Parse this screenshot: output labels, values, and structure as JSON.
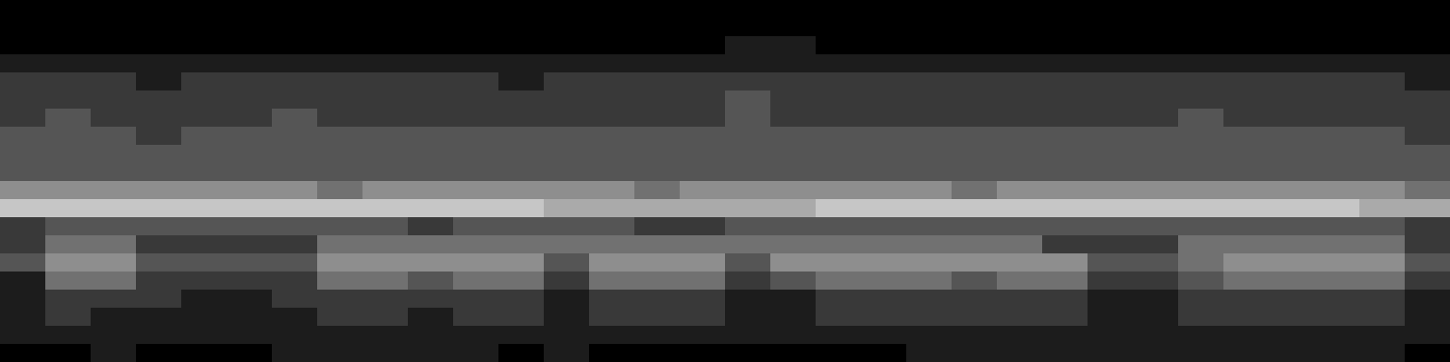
{
  "chart_data": {
    "type": "heatmap",
    "tick_labels": false,
    "color_range": [
      0,
      9
    ],
    "cells": [
      [
        0,
        0,
        0,
        0,
        0,
        0,
        0,
        0,
        0,
        0,
        0,
        0,
        0,
        0,
        0,
        0,
        0,
        0,
        0,
        0,
        0,
        0,
        0,
        0,
        0,
        0,
        0,
        0,
        0,
        0,
        0,
        0
      ],
      [
        0,
        0,
        0,
        0,
        0,
        0,
        0,
        0,
        0,
        0,
        0,
        0,
        0,
        0,
        0,
        0,
        0,
        0,
        0,
        0,
        0,
        0,
        0,
        0,
        0,
        0,
        0,
        0,
        0,
        0,
        0,
        0
      ],
      [
        0,
        0,
        0,
        0,
        0,
        0,
        0,
        0,
        0,
        0,
        0,
        0,
        0,
        0,
        0,
        0,
        1,
        1,
        0,
        0,
        0,
        0,
        0,
        0,
        0,
        0,
        0,
        0,
        0,
        0,
        0,
        0
      ],
      [
        1,
        1,
        1,
        1,
        1,
        1,
        1,
        1,
        1,
        1,
        1,
        1,
        1,
        1,
        1,
        1,
        1,
        1,
        1,
        1,
        1,
        1,
        1,
        1,
        1,
        1,
        1,
        1,
        1,
        1,
        1,
        1
      ],
      [
        2,
        2,
        2,
        1,
        2,
        2,
        2,
        2,
        2,
        2,
        2,
        1,
        2,
        2,
        2,
        2,
        2,
        2,
        2,
        2,
        2,
        2,
        2,
        2,
        2,
        2,
        2,
        2,
        2,
        2,
        2,
        1
      ],
      [
        2,
        2,
        2,
        2,
        2,
        2,
        2,
        2,
        2,
        2,
        2,
        2,
        2,
        2,
        2,
        2,
        3,
        2,
        2,
        2,
        2,
        2,
        2,
        2,
        2,
        2,
        2,
        2,
        2,
        2,
        2,
        2
      ],
      [
        2,
        3,
        2,
        2,
        2,
        2,
        3,
        2,
        2,
        2,
        2,
        2,
        2,
        2,
        2,
        2,
        3,
        2,
        2,
        2,
        2,
        2,
        2,
        2,
        2,
        2,
        3,
        2,
        2,
        2,
        2,
        2
      ],
      [
        3,
        3,
        3,
        2,
        3,
        3,
        3,
        3,
        3,
        3,
        3,
        3,
        3,
        3,
        3,
        3,
        3,
        3,
        3,
        3,
        3,
        3,
        3,
        3,
        3,
        3,
        3,
        3,
        3,
        3,
        3,
        2
      ],
      [
        3,
        3,
        3,
        3,
        3,
        3,
        3,
        3,
        3,
        3,
        3,
        3,
        3,
        3,
        3,
        3,
        3,
        3,
        3,
        3,
        3,
        3,
        3,
        3,
        3,
        3,
        3,
        3,
        3,
        3,
        3,
        3
      ],
      [
        3,
        3,
        3,
        3,
        3,
        3,
        3,
        3,
        3,
        3,
        3,
        3,
        3,
        3,
        3,
        3,
        3,
        3,
        3,
        3,
        3,
        3,
        3,
        3,
        3,
        3,
        3,
        3,
        3,
        3,
        3,
        3
      ],
      [
        5,
        5,
        5,
        5,
        5,
        5,
        5,
        4,
        5,
        5,
        5,
        5,
        5,
        5,
        4,
        5,
        5,
        5,
        5,
        5,
        5,
        4,
        5,
        5,
        5,
        5,
        5,
        5,
        5,
        5,
        5,
        4
      ],
      [
        7,
        7,
        7,
        7,
        7,
        7,
        7,
        7,
        7,
        7,
        7,
        7,
        6,
        6,
        6,
        6,
        6,
        6,
        7,
        7,
        7,
        7,
        7,
        7,
        7,
        7,
        7,
        7,
        7,
        7,
        6,
        6
      ],
      [
        2,
        3,
        3,
        3,
        3,
        3,
        3,
        3,
        3,
        2,
        3,
        3,
        3,
        3,
        2,
        2,
        3,
        3,
        3,
        3,
        3,
        3,
        3,
        3,
        3,
        3,
        3,
        3,
        3,
        3,
        3,
        2
      ],
      [
        2,
        4,
        4,
        2,
        2,
        2,
        2,
        4,
        4,
        4,
        4,
        4,
        4,
        4,
        4,
        4,
        4,
        4,
        4,
        4,
        4,
        4,
        4,
        2,
        2,
        2,
        4,
        4,
        4,
        4,
        4,
        2
      ],
      [
        3,
        5,
        5,
        3,
        3,
        3,
        3,
        5,
        5,
        5,
        5,
        5,
        3,
        5,
        5,
        5,
        3,
        5,
        5,
        5,
        5,
        5,
        5,
        5,
        3,
        3,
        4,
        5,
        5,
        5,
        5,
        3
      ],
      [
        1,
        4,
        4,
        2,
        2,
        2,
        2,
        4,
        4,
        3,
        4,
        4,
        2,
        4,
        4,
        4,
        2,
        3,
        4,
        4,
        4,
        3,
        4,
        4,
        2,
        2,
        3,
        4,
        4,
        4,
        4,
        2
      ],
      [
        1,
        2,
        2,
        2,
        1,
        1,
        2,
        2,
        2,
        2,
        2,
        2,
        1,
        2,
        2,
        2,
        1,
        1,
        2,
        2,
        2,
        2,
        2,
        2,
        1,
        1,
        2,
        2,
        2,
        2,
        2,
        1
      ],
      [
        1,
        2,
        1,
        1,
        1,
        1,
        1,
        2,
        2,
        1,
        2,
        2,
        1,
        2,
        2,
        2,
        1,
        1,
        2,
        2,
        2,
        2,
        2,
        2,
        1,
        1,
        2,
        2,
        2,
        2,
        2,
        1
      ],
      [
        1,
        1,
        1,
        1,
        1,
        1,
        1,
        1,
        1,
        1,
        1,
        1,
        1,
        1,
        1,
        1,
        1,
        1,
        1,
        1,
        1,
        1,
        1,
        1,
        1,
        1,
        1,
        1,
        1,
        1,
        1,
        1
      ],
      [
        0,
        0,
        1,
        0,
        0,
        0,
        1,
        1,
        1,
        1,
        1,
        0,
        1,
        0,
        0,
        0,
        0,
        0,
        0,
        0,
        1,
        1,
        1,
        1,
        1,
        1,
        1,
        1,
        1,
        1,
        1,
        0
      ]
    ]
  }
}
